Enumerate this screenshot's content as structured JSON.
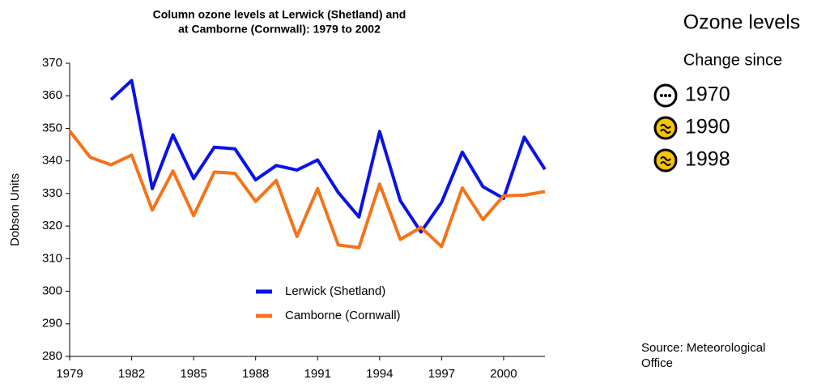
{
  "chart_data": {
    "type": "line",
    "title": [
      "Column ozone levels at Lerwick (Shetland) and",
      "at Camborne (Cornwall): 1979 to 2002"
    ],
    "y_label": "Dobson Units",
    "x": [
      1979,
      1980,
      1981,
      1982,
      1983,
      1984,
      1985,
      1986,
      1987,
      1988,
      1989,
      1990,
      1991,
      1992,
      1993,
      1994,
      1995,
      1996,
      1997,
      1998,
      1999,
      2000,
      2001,
      2002
    ],
    "series": [
      {
        "name": "Lerwick (Shetland)",
        "color": "#0a12e8",
        "values": [
          null,
          null,
          358.8,
          364.7,
          331.5,
          348,
          334.6,
          344.2,
          343.7,
          334.2,
          338.6,
          337.2,
          340.3,
          330.3,
          322.8,
          349,
          327.8,
          318.2,
          327.3,
          342.7,
          332.1,
          328.5,
          347.3,
          337.4
        ]
      },
      {
        "name": "Camborne (Cornwall)",
        "color": "#f57318",
        "values": [
          349.2,
          341.1,
          338.8,
          341.8,
          324.9,
          336.9,
          323.2,
          336.6,
          336.2,
          327.6,
          334,
          316.8,
          331.5,
          314.2,
          313.4,
          332.9,
          315.9,
          319.6,
          313.7,
          331.7,
          322,
          329.3,
          329.5,
          330.6
        ]
      }
    ],
    "xlim": [
      1979,
      2002
    ],
    "xticks": [
      1979,
      1982,
      1985,
      1988,
      1991,
      1994,
      1997,
      2000
    ],
    "ylim": [
      280,
      370
    ],
    "yticks": [
      280,
      290,
      300,
      310,
      320,
      330,
      340,
      350,
      360,
      370
    ],
    "grid": false,
    "legend": "bottom"
  },
  "panel": {
    "title": "Ozone levels",
    "subtitle": "Change since",
    "items": [
      {
        "year": "1970",
        "icon": "neutral"
      },
      {
        "year": "1990",
        "icon": "similar"
      },
      {
        "year": "1998",
        "icon": "similar"
      }
    ],
    "source": "Source: Meteorological Office"
  }
}
